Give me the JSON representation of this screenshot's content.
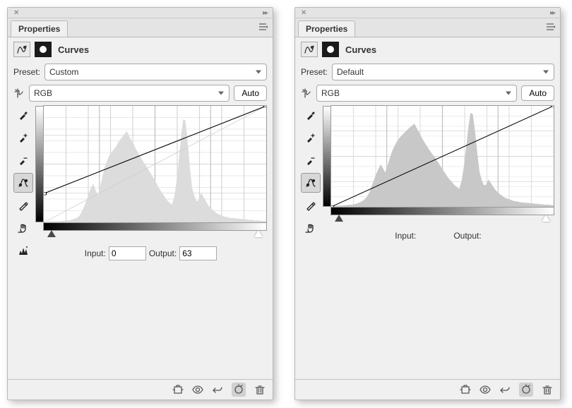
{
  "panels": [
    {
      "tab_label": "Properties",
      "title": "Curves",
      "preset_label": "Preset:",
      "preset_value": "Custom",
      "channel_value": "RGB",
      "auto_label": "Auto",
      "input_label": "Input:",
      "input_value": "0",
      "output_label": "Output:",
      "output_value": "63",
      "has_io_values": true,
      "histogram_fill": "#dcdcdc",
      "grid_color": "#d5d5d5",
      "curve_points": [
        [
          0,
          63
        ],
        [
          255,
          255
        ]
      ],
      "histogram": [
        1,
        1,
        2,
        2,
        2,
        2,
        2,
        2,
        3,
        3,
        4,
        4,
        5,
        6,
        8,
        10,
        14,
        22,
        32,
        44,
        58,
        70,
        78,
        66,
        54,
        70,
        90,
        110,
        122,
        134,
        140,
        146,
        152,
        160,
        167,
        172,
        179,
        184,
        174,
        165,
        158,
        148,
        140,
        132,
        124,
        118,
        110,
        103,
        96,
        88,
        80,
        72,
        64,
        58,
        50,
        44,
        40,
        36,
        50,
        80,
        120,
        170,
        208,
        206,
        165,
        112,
        70,
        54,
        42,
        46,
        60,
        52,
        44,
        36,
        30,
        26,
        22,
        18,
        16,
        14,
        12,
        11,
        10,
        9,
        9,
        8,
        8,
        7,
        7,
        6,
        6,
        5,
        5,
        5,
        4,
        4,
        4,
        3,
        3,
        3
      ]
    },
    {
      "tab_label": "Properties",
      "title": "Curves",
      "preset_label": "Preset:",
      "preset_value": "Default",
      "channel_value": "RGB",
      "auto_label": "Auto",
      "input_label": "Input:",
      "input_value": "",
      "output_label": "Output:",
      "output_value": "",
      "has_io_values": false,
      "histogram_fill": "#c8c8c8",
      "grid_color": "#e0e0e0",
      "curve_points": [
        [
          0,
          0
        ],
        [
          255,
          255
        ]
      ],
      "histogram": [
        2,
        2,
        2,
        3,
        3,
        3,
        4,
        4,
        5,
        5,
        6,
        7,
        9,
        11,
        14,
        18,
        24,
        34,
        48,
        62,
        76,
        88,
        99,
        90,
        80,
        95,
        112,
        128,
        140,
        150,
        158,
        164,
        170,
        175,
        180,
        185,
        189,
        194,
        184,
        175,
        164,
        155,
        146,
        138,
        130,
        123,
        116,
        108,
        100,
        92,
        84,
        76,
        68,
        62,
        56,
        50,
        46,
        42,
        60,
        92,
        134,
        184,
        219,
        216,
        178,
        126,
        82,
        62,
        50,
        52,
        64,
        56,
        48,
        40,
        34,
        30,
        26,
        22,
        20,
        18,
        16,
        14,
        13,
        12,
        11,
        10,
        10,
        9,
        9,
        8,
        8,
        7,
        7,
        6,
        6,
        5,
        5,
        5,
        4,
        4
      ]
    }
  ],
  "graph_size": 270,
  "hist_max": 235
}
